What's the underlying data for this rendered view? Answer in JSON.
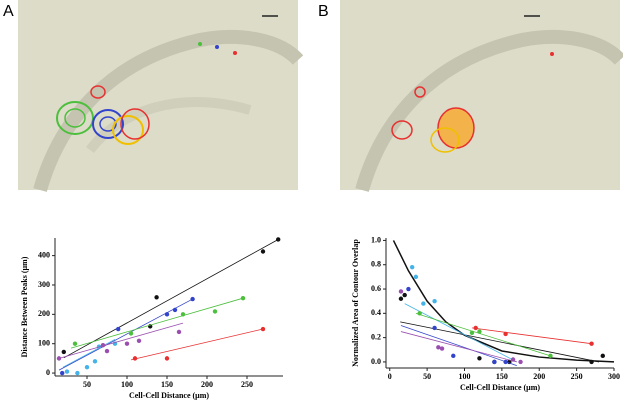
{
  "panel_labels": [
    "A",
    "B"
  ],
  "chart_data": [
    {
      "type": "scatter",
      "xlabel": "Cell-Cell Distance (μm)",
      "ylabel": "Distance Between Peaks (μm)",
      "xlim": [
        10,
        295
      ],
      "ylim": [
        -10,
        460
      ],
      "xticks": [
        50,
        100,
        150,
        200,
        250
      ],
      "yticks": [
        0,
        100,
        200,
        300,
        400
      ],
      "series": [
        {
          "color": "#111111",
          "x": [
            21,
            129,
            137,
            270,
            289
          ],
          "y": [
            72,
            159,
            258,
            414,
            455
          ],
          "fit": [
            [
              21,
              52
            ],
            [
              289,
              455
            ]
          ]
        },
        {
          "color": "#3344cc",
          "x": [
            19,
            89,
            150,
            160,
            182
          ],
          "y": [
            0,
            150,
            200,
            215,
            252
          ],
          "fit": [
            [
              15,
              10
            ],
            [
              182,
              252
            ]
          ]
        },
        {
          "color": "#44b3e8",
          "x": [
            25,
            38,
            50,
            60,
            65,
            85
          ],
          "y": [
            5,
            0,
            20,
            40,
            90,
            100
          ],
          "fit": [
            [
              20,
              20
            ],
            [
              85,
              115
            ]
          ]
        },
        {
          "color": "#9a4fb0",
          "x": [
            15,
            70,
            75,
            100,
            115,
            165
          ],
          "y": [
            50,
            95,
            75,
            100,
            110,
            140
          ],
          "fit": [
            [
              15,
              50
            ],
            [
              170,
              170
            ]
          ]
        },
        {
          "color": "#4cbf3c",
          "x": [
            35,
            105,
            170,
            210,
            245
          ],
          "y": [
            100,
            135,
            200,
            210,
            255
          ],
          "fit": [
            [
              30,
              85
            ],
            [
              245,
              255
            ]
          ]
        },
        {
          "color": "#e83030",
          "x": [
            110,
            150,
            270
          ],
          "y": [
            50,
            50,
            150
          ],
          "fit": [
            [
              105,
              45
            ],
            [
              270,
              150
            ]
          ]
        }
      ]
    },
    {
      "type": "scatter",
      "xlabel": "Cell-Cell Distance (μm)",
      "ylabel": "Normalized Area of Contour Overlap",
      "xlim": [
        -5,
        300
      ],
      "ylim": [
        -0.05,
        1.02
      ],
      "xticks": [
        0,
        50,
        100,
        150,
        200,
        250,
        300
      ],
      "yticks": [
        {
          "value": 0,
          "label": "0.0"
        },
        0.2,
        0.4,
        0.6,
        0.8,
        {
          "value": 1,
          "label": "1.0"
        }
      ],
      "curve": {
        "x": [
          5,
          25,
          50,
          75,
          100,
          150,
          200,
          250,
          300
        ],
        "y": [
          1.0,
          0.75,
          0.5,
          0.33,
          0.22,
          0.09,
          0.04,
          0.015,
          0.0
        ]
      },
      "series": [
        {
          "color": "#111111",
          "x": [
            15,
            20,
            120,
            140,
            160,
            270,
            285
          ],
          "y": [
            0.52,
            0.55,
            0.03,
            0.0,
            0.0,
            0.0,
            0.05
          ],
          "fit": [
            [
              14,
              0.33
            ],
            [
              280,
              0.0
            ]
          ]
        },
        {
          "color": "#44b3e8",
          "x": [
            30,
            35,
            45,
            60
          ],
          "y": [
            0.78,
            0.7,
            0.48,
            0.5
          ],
          "fit": [
            [
              20,
              0.48
            ],
            [
              170,
              0.0
            ]
          ]
        },
        {
          "color": "#3344cc",
          "x": [
            25,
            60,
            85,
            140,
            155
          ],
          "y": [
            0.6,
            0.28,
            0.05,
            0.0,
            0.0
          ],
          "fit": [
            [
              15,
              0.3
            ],
            [
              170,
              -0.03
            ]
          ]
        },
        {
          "color": "#9a4fb0",
          "x": [
            15,
            65,
            70,
            165,
            175
          ],
          "y": [
            0.58,
            0.12,
            0.11,
            0.02,
            0.0
          ],
          "fit": [
            [
              15,
              0.25
            ],
            [
              170,
              0.0
            ]
          ]
        },
        {
          "color": "#4cbf3c",
          "x": [
            40,
            110,
            120,
            215
          ],
          "y": [
            0.4,
            0.24,
            0.25,
            0.05
          ],
          "fit": [
            [
              35,
              0.4
            ],
            [
              215,
              0.05
            ]
          ]
        },
        {
          "color": "#e83030",
          "x": [
            115,
            155,
            270
          ],
          "y": [
            0.28,
            0.23,
            0.15
          ],
          "fit": [
            [
              110,
              0.28
            ],
            [
              270,
              0.15
            ]
          ]
        }
      ]
    }
  ]
}
